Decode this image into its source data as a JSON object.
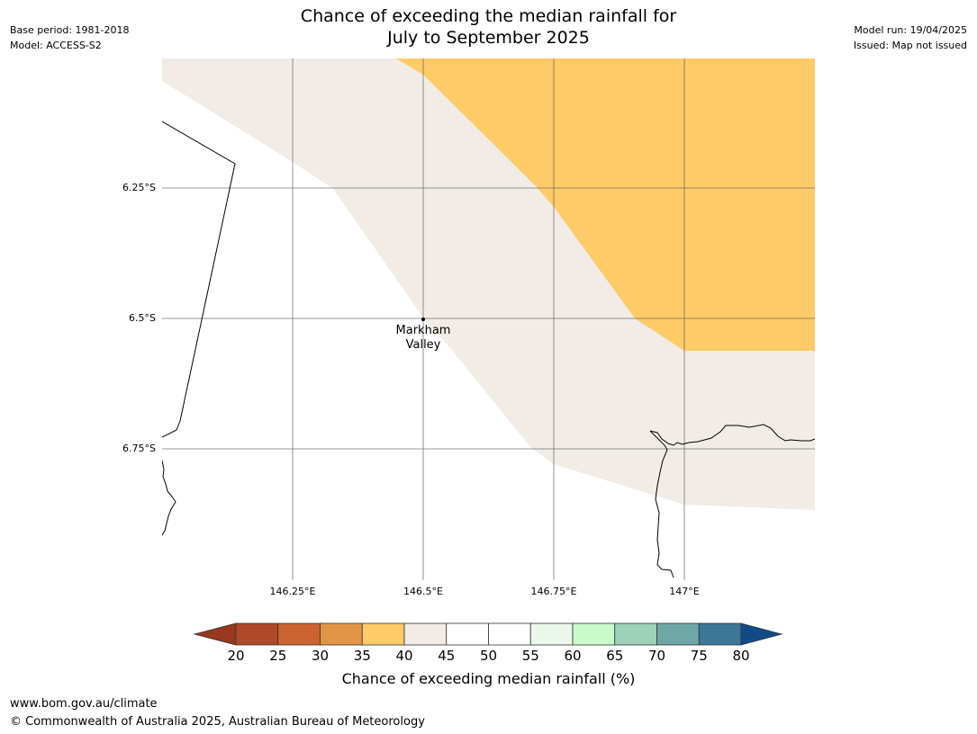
{
  "header": {
    "title_line1": "Chance of exceeding the median rainfall for",
    "title_line2": "July to September 2025",
    "base_period": "Base period: 1981-2018",
    "model": "Model: ACCESS-S2",
    "model_run": "Model run: 19/04/2025",
    "issued": "Issued: Map not issued"
  },
  "map": {
    "latitude_labels": [
      "6.25°S",
      "6.5°S",
      "6.75°S"
    ],
    "longitude_labels": [
      "146.25°E",
      "146.5°E",
      "146.75°E",
      "147°E"
    ],
    "places": [
      {
        "name_line1": "Markham",
        "name_line2": "Valley",
        "lon": 146.5,
        "lat": -6.5
      }
    ],
    "region_colors": {
      "band_35_40": "#fecb67",
      "band_40_45": "#f1ece6",
      "band_45_55": "#ffffff"
    }
  },
  "colorbar": {
    "label": "Chance of exceeding median rainfall (%)",
    "ticks": [
      "20",
      "25",
      "30",
      "35",
      "40",
      "45",
      "50",
      "55",
      "60",
      "65",
      "70",
      "75",
      "80"
    ],
    "under_color": "#98381f",
    "over_color": "#114b87",
    "colors": [
      "#b0492a",
      "#cb632f",
      "#e39546",
      "#fecb67",
      "#f1ece6",
      "#ffffff",
      "#ffffff",
      "#ebf7ea",
      "#c8fbc9",
      "#9dd1b9",
      "#6ea7a6",
      "#3c7699"
    ]
  },
  "footer": {
    "url": "www.bom.gov.au/climate",
    "copyright": "© Commonwealth of Australia 2025, Australian Bureau of Meteorology"
  }
}
